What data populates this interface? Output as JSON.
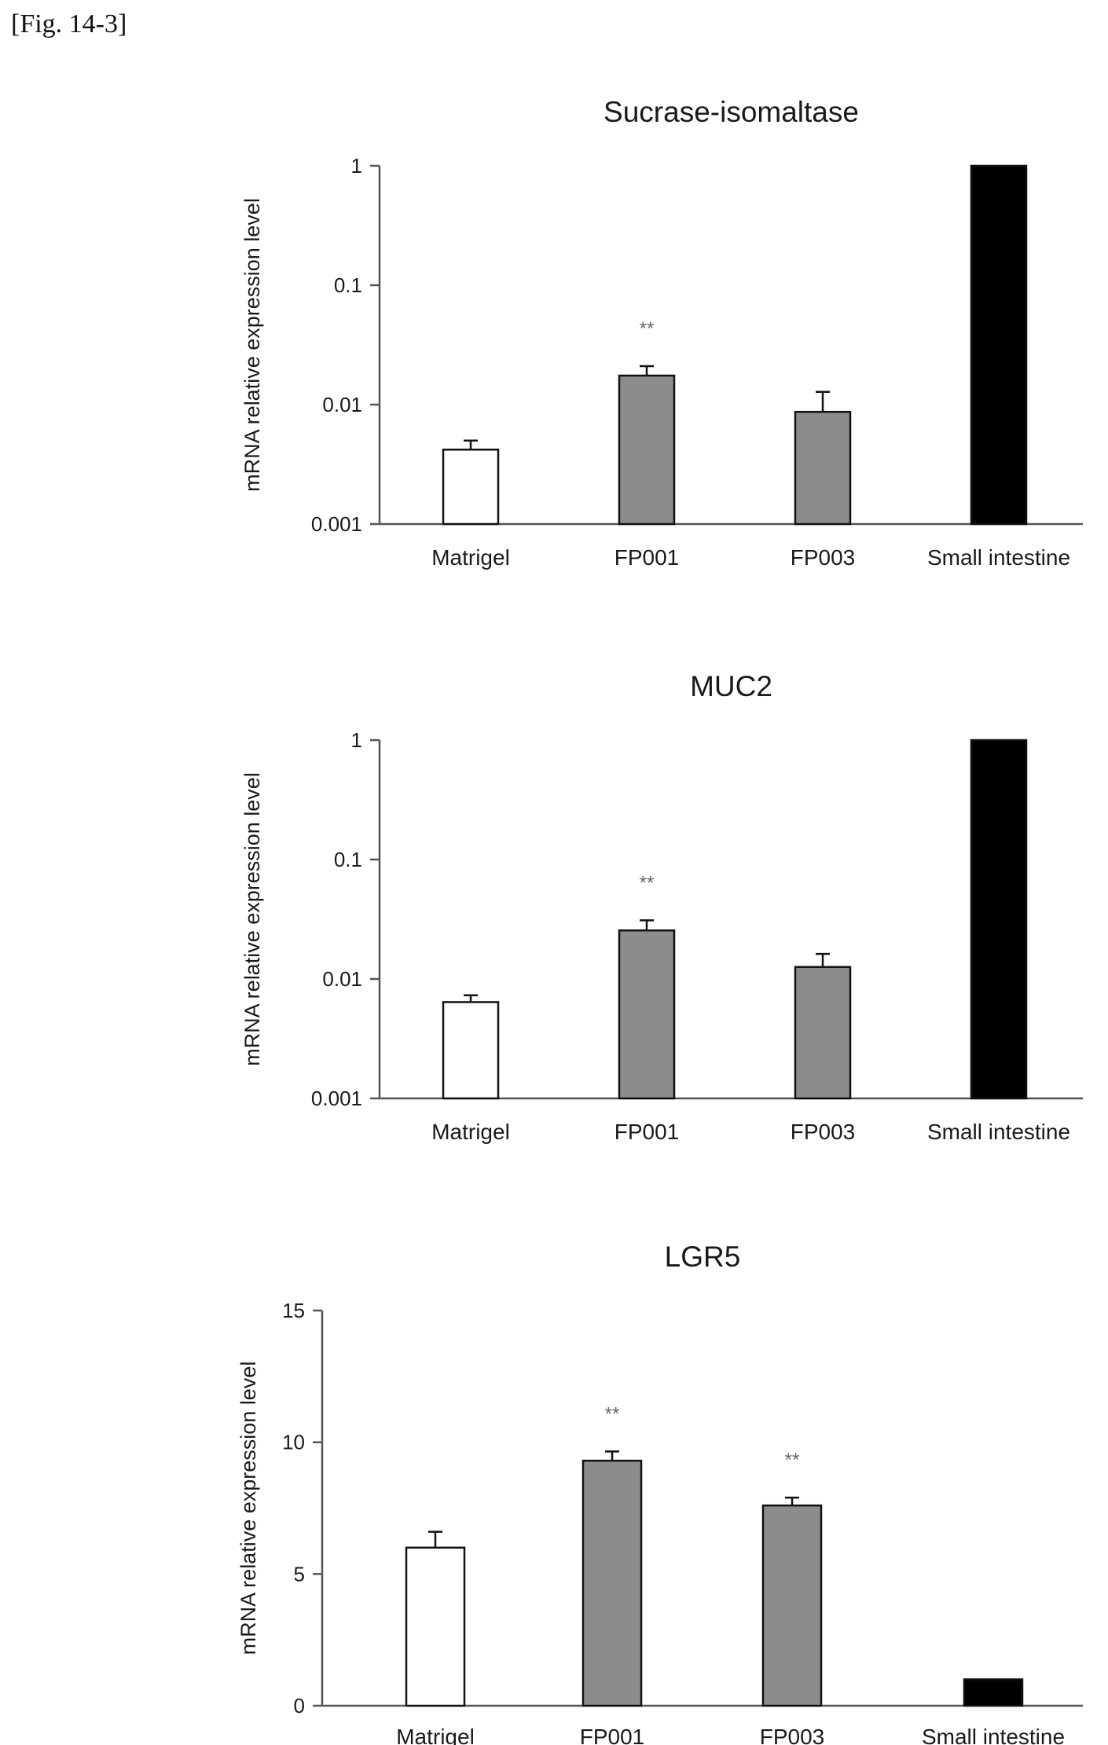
{
  "figure_label": "[Fig. 14-3]",
  "colors": {
    "Matrigel": "#ffffff",
    "FP001": "#8c8c8c",
    "FP003": "#8c8c8c",
    "Small intestine": "#000000"
  },
  "chart_data": [
    {
      "type": "bar",
      "title": "Sucrase-isomaltase",
      "ylabel": "mRNA relative expression level",
      "xlabel": "",
      "yscale": "log",
      "ylim": [
        0.001,
        1
      ],
      "yticks": [
        0.001,
        0.01,
        0.1,
        1
      ],
      "ytick_labels": [
        "0.001",
        "0.01",
        "0.1",
        "1"
      ],
      "categories": [
        "Matrigel",
        "FP001",
        "FP003",
        "Small intestine"
      ],
      "values": [
        0.0042,
        0.0175,
        0.0087,
        1
      ],
      "errors_upper": [
        0.005,
        0.021,
        0.0128,
        null
      ],
      "significance": [
        "",
        "**",
        "",
        ""
      ]
    },
    {
      "type": "bar",
      "title": "MUC2",
      "ylabel": "mRNA relative expression level",
      "xlabel": "",
      "yscale": "log",
      "ylim": [
        0.001,
        1
      ],
      "yticks": [
        0.001,
        0.01,
        0.1,
        1
      ],
      "ytick_labels": [
        "0.001",
        "0.01",
        "0.1",
        "1"
      ],
      "categories": [
        "Matrigel",
        "FP001",
        "FP003",
        "Small intestine"
      ],
      "values": [
        0.0064,
        0.0255,
        0.0126,
        1
      ],
      "errors_upper": [
        0.0073,
        0.031,
        0.0162,
        null
      ],
      "significance": [
        "",
        "**",
        "",
        ""
      ]
    },
    {
      "type": "bar",
      "title": "LGR5",
      "ylabel": "mRNA relative expression level",
      "xlabel": "",
      "yscale": "linear",
      "ylim": [
        0,
        15
      ],
      "yticks": [
        0,
        5,
        10,
        15
      ],
      "ytick_labels": [
        "0",
        "5",
        "10",
        "15"
      ],
      "categories": [
        "Matrigel",
        "FP001",
        "FP003",
        "Small intestine"
      ],
      "values": [
        6.0,
        9.3,
        7.6,
        1.0
      ],
      "errors_upper": [
        6.6,
        9.65,
        7.9,
        null
      ],
      "significance": [
        "",
        "**",
        "**",
        ""
      ]
    }
  ]
}
